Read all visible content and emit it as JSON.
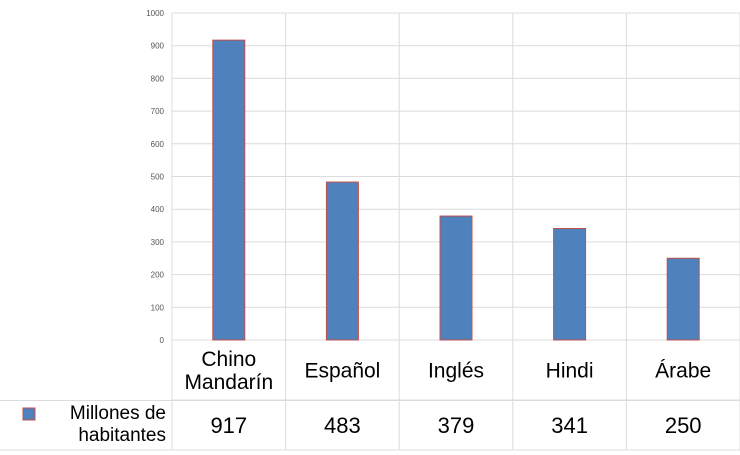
{
  "chart_data": {
    "type": "bar",
    "categories": [
      "Chino Mandarín",
      "Español",
      "Inglés",
      "Hindi",
      "Árabe"
    ],
    "category_labels": [
      [
        "Chino",
        "Mandarín"
      ],
      [
        "Español"
      ],
      [
        "Inglés"
      ],
      [
        "Hindi"
      ],
      [
        "Árabe"
      ]
    ],
    "series": [
      {
        "name": "Millones de habitantes",
        "values": [
          917,
          483,
          379,
          341,
          250
        ]
      }
    ],
    "legend_label_lines": [
      "Millones de",
      "habitantes"
    ],
    "ylim": [
      0,
      1000
    ],
    "yticks": [
      0,
      100,
      200,
      300,
      400,
      500,
      600,
      700,
      800,
      900,
      1000
    ],
    "grid": true,
    "legend_position": "bottom-left data table",
    "colors": {
      "bar_fill": "#4f81bd",
      "bar_edge": "#c0504d",
      "grid": "#dcdcdc",
      "axis_text": "#555555"
    }
  }
}
